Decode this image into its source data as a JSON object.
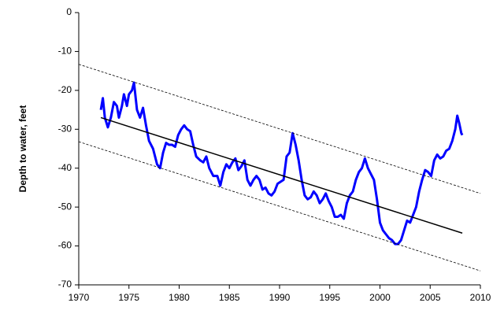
{
  "chart_data": {
    "type": "line",
    "ylabel": "Depth to water, feet",
    "xlim": [
      1970,
      2010
    ],
    "xticks": [
      1970,
      1975,
      1980,
      1985,
      1990,
      1995,
      2000,
      2005,
      2010
    ],
    "ylim": [
      -70,
      0
    ],
    "yticks": [
      0,
      -10,
      -20,
      -30,
      -40,
      -50,
      -60,
      -70
    ],
    "series": [
      {
        "color": "#0000ff",
        "style": "solid",
        "width": 3,
        "x": [
          1972.2,
          1972.4,
          1972.6,
          1972.9,
          1973.2,
          1973.5,
          1973.8,
          1974.0,
          1974.3,
          1974.5,
          1974.8,
          1975.0,
          1975.3,
          1975.5,
          1975.8,
          1976.1,
          1976.4,
          1976.7,
          1977.0,
          1977.4,
          1977.8,
          1978.1,
          1978.4,
          1978.7,
          1979.0,
          1979.3,
          1979.6,
          1979.9,
          1980.2,
          1980.5,
          1980.8,
          1981.1,
          1981.4,
          1981.7,
          1982.1,
          1982.4,
          1982.7,
          1983.0,
          1983.4,
          1983.8,
          1984.1,
          1984.4,
          1984.7,
          1985.0,
          1985.3,
          1985.6,
          1985.9,
          1986.2,
          1986.5,
          1986.8,
          1987.1,
          1987.4,
          1987.7,
          1988.0,
          1988.3,
          1988.6,
          1988.9,
          1989.2,
          1989.5,
          1989.8,
          1990.1,
          1990.4,
          1990.7,
          1991.0,
          1991.3,
          1991.6,
          1991.9,
          1992.2,
          1992.5,
          1992.8,
          1993.1,
          1993.4,
          1993.7,
          1994.0,
          1994.3,
          1994.6,
          1994.9,
          1995.2,
          1995.5,
          1995.8,
          1996.1,
          1996.4,
          1996.7,
          1997.0,
          1997.3,
          1997.6,
          1997.9,
          1998.2,
          1998.5,
          1998.8,
          1999.1,
          1999.4,
          1999.7,
          2000.0,
          2000.3,
          2000.6,
          2000.9,
          2001.2,
          2001.5,
          2001.8,
          2002.1,
          2002.4,
          2002.7,
          2003.0,
          2003.3,
          2003.6,
          2003.9,
          2004.2,
          2004.5,
          2004.8,
          2005.1,
          2005.4,
          2005.7,
          2006.0,
          2006.3,
          2006.6,
          2006.9,
          2007.2,
          2007.5,
          2007.7,
          2007.9,
          2008.1,
          2008.2
        ],
        "values": [
          -25,
          -22,
          -27,
          -29.5,
          -27,
          -23,
          -24,
          -27,
          -24,
          -21,
          -24,
          -21,
          -20,
          -18,
          -25,
          -27,
          -24.5,
          -29,
          -33,
          -35,
          -39,
          -40,
          -36,
          -33.5,
          -34,
          -34,
          -34.5,
          -31.5,
          -30,
          -29,
          -30,
          -30.5,
          -34,
          -37,
          -38,
          -38.5,
          -37,
          -40,
          -42,
          -42,
          -44.5,
          -41,
          -39,
          -40,
          -38.5,
          -37.5,
          -40.5,
          -39.5,
          -38,
          -43,
          -44.5,
          -43,
          -42,
          -43,
          -45.5,
          -45,
          -46.5,
          -47,
          -46,
          -44,
          -43.5,
          -43,
          -37,
          -36,
          -31,
          -34,
          -38,
          -43,
          -47,
          -48,
          -47.5,
          -46,
          -47,
          -49,
          -48,
          -46.5,
          -48.5,
          -50,
          -52.5,
          -52.5,
          -52,
          -53,
          -49,
          -47,
          -46,
          -43,
          -41,
          -40,
          -37.5,
          -40,
          -41.5,
          -43,
          -48,
          -54,
          -56,
          -57,
          -58,
          -58.5,
          -59.5,
          -59.5,
          -58.5,
          -56,
          -53.5,
          -54,
          -52,
          -50,
          -46,
          -43,
          -40.5,
          -41,
          -42,
          -38,
          -36.5,
          -37.5,
          -37,
          -35.5,
          -35,
          -33,
          -30,
          -26.5,
          -28.5,
          -31,
          -31.5
        ]
      },
      {
        "color": "#000000",
        "style": "solid",
        "width": 1.5,
        "x": [
          1972.2,
          2008.2
        ],
        "values": [
          -27,
          -56.7
        ]
      },
      {
        "color": "#000000",
        "style": "dashed",
        "width": 0.8,
        "x": [
          1970,
          2010
        ],
        "values": [
          -13.3,
          -46.5
        ]
      },
      {
        "color": "#000000",
        "style": "dashed",
        "width": 0.8,
        "x": [
          1970,
          2010
        ],
        "values": [
          -33.2,
          -66.4
        ]
      }
    ]
  }
}
